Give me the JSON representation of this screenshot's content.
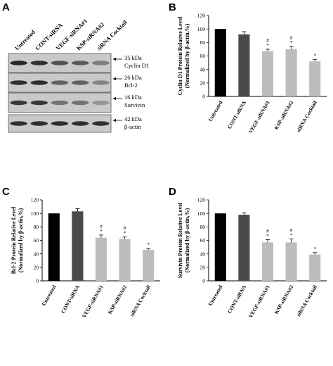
{
  "panels": {
    "a": {
      "letter": "A",
      "lanes": [
        "Untreated",
        "CONT-siRNA",
        "VEGF-siRNA#1",
        "KSP-siRNA#2",
        "siRNA Cocktail"
      ],
      "bands": [
        {
          "kda": "35 kDa",
          "protein": "Cyclin D1",
          "intensity": [
            0.95,
            0.9,
            0.7,
            0.65,
            0.45
          ]
        },
        {
          "kda": "26 kDa",
          "protein": "Bcl-2",
          "intensity": [
            0.9,
            0.92,
            0.6,
            0.6,
            0.4
          ]
        },
        {
          "kda": "16 kDa",
          "protein": "Survivin",
          "intensity": [
            0.85,
            0.85,
            0.5,
            0.5,
            0.3
          ]
        },
        {
          "kda": "42 kDa",
          "protein": "β-actin",
          "intensity": [
            0.9,
            0.9,
            0.9,
            0.9,
            0.9
          ]
        }
      ]
    },
    "b": {
      "letter": "B"
    },
    "c": {
      "letter": "C"
    },
    "d": {
      "letter": "D"
    }
  },
  "chart_data": [
    {
      "panel": "B",
      "type": "bar",
      "categories": [
        "Untreated",
        "CONT-siRNA",
        "VEGF-siRNA#1",
        "KSP-siRNA#2",
        "siRNA Cocktail"
      ],
      "values": [
        100,
        92,
        67,
        70,
        52
      ],
      "errors": [
        0,
        4,
        3,
        4,
        3
      ],
      "annotations": [
        "",
        "",
        "#\n*",
        "#\n*",
        "*"
      ],
      "colors": [
        "#000000",
        "#4a4a4a",
        "#bdbdbd",
        "#bdbdbd",
        "#bdbdbd"
      ],
      "ylabel": [
        "Cyclin D1 Protein Relative Level",
        "(Normalized by β-actin,%)"
      ],
      "ylim": [
        0,
        120
      ],
      "yticks": [
        0,
        20,
        40,
        60,
        80,
        100,
        120
      ]
    },
    {
      "panel": "C",
      "type": "bar",
      "categories": [
        "Untreated",
        "CONT-siRNA",
        "VEGF-siRNA#1",
        "KSP-siRNA#2",
        "siRNA Cocktail"
      ],
      "values": [
        100,
        103,
        64,
        62,
        46
      ],
      "errors": [
        0,
        4,
        4,
        3,
        2
      ],
      "annotations": [
        "",
        "",
        "#\n*",
        "#\n*",
        "*"
      ],
      "colors": [
        "#000000",
        "#4a4a4a",
        "#bdbdbd",
        "#bdbdbd",
        "#bdbdbd"
      ],
      "ylabel": [
        "Bcl-2 Protein Relative Level",
        "(Normalized by β-actin,%)"
      ],
      "ylim": [
        0,
        120
      ],
      "yticks": [
        0,
        20,
        40,
        60,
        80,
        100,
        120
      ]
    },
    {
      "panel": "D",
      "type": "bar",
      "categories": [
        "Untreated",
        "CONT-siRNA",
        "VEGF-siRNA#1",
        "KSP-siRNA#2",
        "siRNA Cocktail"
      ],
      "values": [
        100,
        98,
        57,
        57,
        39
      ],
      "errors": [
        0,
        3,
        4,
        5,
        3
      ],
      "annotations": [
        "",
        "",
        "#\n*",
        "#\n*",
        "*"
      ],
      "colors": [
        "#000000",
        "#4a4a4a",
        "#bdbdbd",
        "#bdbdbd",
        "#bdbdbd"
      ],
      "ylabel": [
        "Survivin Protein Relative Level",
        "(Normalized by β-actin,%)"
      ],
      "ylim": [
        0,
        120
      ],
      "yticks": [
        0,
        20,
        40,
        60,
        80,
        100,
        120
      ]
    }
  ]
}
